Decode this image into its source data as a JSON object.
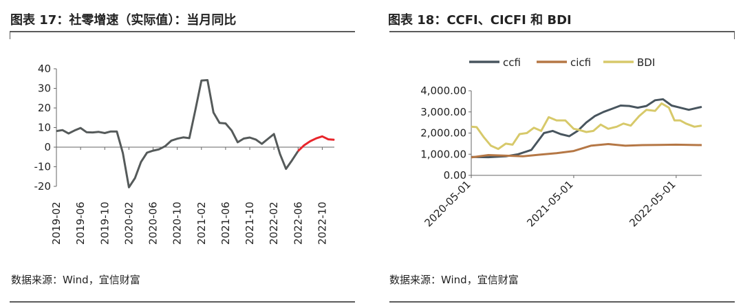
{
  "left": {
    "title": "图表 17：社零增速（实际值）：当月同比",
    "source": "数据来源：Wind，宜信财富",
    "colors": {
      "line": "#555a5a",
      "highlight": "#e8252b"
    },
    "chart_data": {
      "type": "line",
      "ylim": [
        -20,
        40
      ],
      "yticks": [
        -20,
        -10,
        0,
        10,
        20,
        30,
        40
      ],
      "xticks": [
        "2019-02",
        "2019-06",
        "2019-10",
        "2020-02",
        "2020-06",
        "2020-10",
        "2021-02",
        "2021-06",
        "2021-10",
        "2022-02",
        "2022-06",
        "2022-10"
      ],
      "x": [
        "2019-02",
        "2019-03",
        "2019-04",
        "2019-05",
        "2019-06",
        "2019-07",
        "2019-08",
        "2019-09",
        "2019-10",
        "2019-11",
        "2019-12",
        "2020-01",
        "2020-02",
        "2020-03",
        "2020-04",
        "2020-05",
        "2020-06",
        "2020-07",
        "2020-08",
        "2020-09",
        "2020-10",
        "2020-11",
        "2020-12",
        "2021-01",
        "2021-02",
        "2021-03",
        "2021-04",
        "2021-05",
        "2021-06",
        "2021-07",
        "2021-08",
        "2021-09",
        "2021-10",
        "2021-11",
        "2021-12",
        "2022-01",
        "2022-02",
        "2022-03",
        "2022-04",
        "2022-05",
        "2022-06",
        "2022-07",
        "2022-08",
        "2022-09",
        "2022-10",
        "2022-11",
        "2022-12"
      ],
      "values": [
        8.2,
        8.7,
        7.0,
        8.5,
        9.8,
        7.6,
        7.5,
        7.8,
        7.2,
        8.0,
        8.0,
        -3.0,
        -20.5,
        -15.8,
        -7.5,
        -2.8,
        -1.8,
        -1.1,
        0.5,
        3.3,
        4.3,
        5.0,
        4.6,
        19.0,
        34.0,
        34.2,
        17.7,
        12.4,
        12.1,
        8.5,
        2.5,
        4.4,
        4.9,
        3.9,
        1.7,
        4.2,
        6.7,
        -3.5,
        -11.1,
        -6.7,
        -2.0,
        1.0,
        3.0,
        4.5,
        5.5,
        4.0,
        3.8
      ],
      "highlight_from": "2022-06"
    }
  },
  "right": {
    "title": "图表 18：CCFI、CICFI 和 BDI",
    "source": "数据来源：Wind，宜信财富",
    "legend": "top",
    "chart_data": {
      "type": "line",
      "ylim": [
        0,
        4000
      ],
      "yticks": [
        "0.00",
        "1,000.00",
        "2,000.00",
        "3,000.00",
        "4,000.00"
      ],
      "xticks": [
        "2020-05-01",
        "2021-05-01",
        "2022-05-01"
      ],
      "x_start": "2020-05-01",
      "x_end": "2022-07-31",
      "series": [
        {
          "name": "ccfi",
          "color": "#48555e",
          "x": [
            "2020-05-01",
            "2020-07-01",
            "2020-09-01",
            "2020-10-15",
            "2020-12-01",
            "2021-01-15",
            "2021-02-15",
            "2021-03-15",
            "2021-04-15",
            "2021-05-15",
            "2021-06-15",
            "2021-07-15",
            "2021-08-15",
            "2021-09-15",
            "2021-10-15",
            "2021-11-15",
            "2021-12-15",
            "2022-01-15",
            "2022-02-15",
            "2022-03-15",
            "2022-04-15",
            "2022-05-15",
            "2022-06-15",
            "2022-07-31"
          ],
          "values": [
            870,
            860,
            900,
            1000,
            1200,
            2000,
            2100,
            1950,
            1850,
            2100,
            2500,
            2800,
            3000,
            3150,
            3300,
            3280,
            3200,
            3280,
            3550,
            3600,
            3300,
            3200,
            3100,
            3240
          ]
        },
        {
          "name": "cicfi",
          "color": "#b57745",
          "x": [
            "2020-05-01",
            "2020-07-01",
            "2020-09-01",
            "2020-11-01",
            "2021-01-01",
            "2021-03-01",
            "2021-05-01",
            "2021-07-01",
            "2021-09-01",
            "2021-11-01",
            "2022-01-01",
            "2022-03-01",
            "2022-05-01",
            "2022-07-31"
          ],
          "values": [
            850,
            960,
            930,
            900,
            980,
            1050,
            1150,
            1400,
            1480,
            1400,
            1430,
            1440,
            1450,
            1430
          ]
        },
        {
          "name": "BDI",
          "color": "#d7c96a",
          "x": [
            "2020-05-01",
            "2020-05-20",
            "2020-06-15",
            "2020-07-10",
            "2020-08-05",
            "2020-09-01",
            "2020-09-25",
            "2020-10-20",
            "2020-11-15",
            "2020-12-10",
            "2021-01-05",
            "2021-02-01",
            "2021-03-01",
            "2021-04-01",
            "2021-05-01",
            "2021-05-20",
            "2021-06-15",
            "2021-07-10",
            "2021-08-05",
            "2021-09-01",
            "2021-10-01",
            "2021-10-25",
            "2021-11-20",
            "2021-12-20",
            "2022-01-15",
            "2022-02-15",
            "2022-03-10",
            "2022-04-05",
            "2022-04-25",
            "2022-05-15",
            "2022-06-05",
            "2022-07-05",
            "2022-07-31"
          ],
          "values": [
            2300,
            2280,
            1800,
            1400,
            1250,
            1500,
            1450,
            1950,
            2000,
            2250,
            2100,
            2750,
            2600,
            2600,
            2200,
            2150,
            2050,
            2100,
            2400,
            2200,
            2300,
            2450,
            2350,
            2800,
            3100,
            3050,
            3400,
            3200,
            2600,
            2600,
            2450,
            2300,
            2350
          ]
        }
      ]
    }
  }
}
